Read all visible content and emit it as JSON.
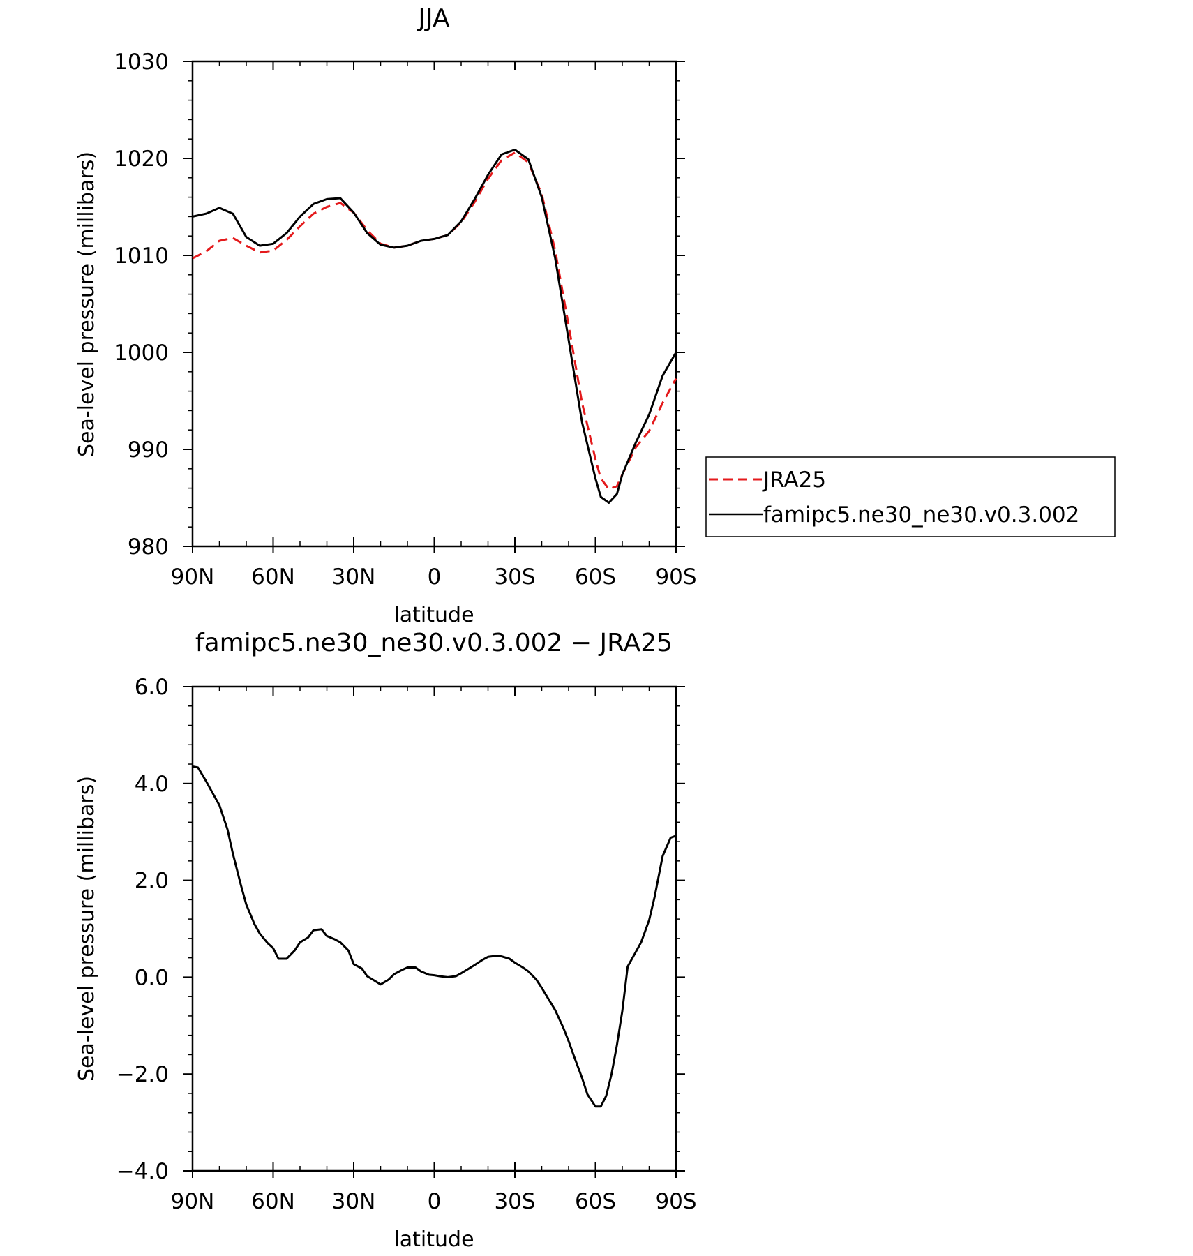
{
  "chart_data": [
    {
      "type": "line",
      "title": "JJA",
      "xlabel": "latitude",
      "ylabel": "Sea-level pressure (millibars)",
      "xlim": [
        90,
        -90
      ],
      "ylim": [
        980,
        1030
      ],
      "x_ticks": [
        90,
        60,
        30,
        0,
        -30,
        -60,
        -90
      ],
      "x_tick_labels": [
        "90N",
        "60N",
        "30N",
        "0",
        "30S",
        "60S",
        "90S"
      ],
      "y_ticks": [
        980,
        990,
        1000,
        1010,
        1020,
        1030
      ],
      "y_tick_labels": [
        "980",
        "990",
        "1000",
        "1010",
        "1020",
        "1030"
      ],
      "grid": false,
      "legend": {
        "position": "right",
        "entries": [
          {
            "label": "JRA25",
            "color": "#e41a1c",
            "style": "dashed"
          },
          {
            "label": "famipc5.ne30_ne30.v0.3.002",
            "color": "#000000",
            "style": "solid"
          }
        ]
      },
      "x": [
        90,
        85,
        80,
        75,
        70,
        65,
        60,
        55,
        50,
        45,
        40,
        35,
        30,
        25,
        20,
        15,
        10,
        5,
        0,
        -5,
        -10,
        -15,
        -20,
        -25,
        -30,
        -35,
        -40,
        -45,
        -50,
        -55,
        -60,
        -62,
        -65,
        -68,
        -70,
        -75,
        -80,
        -85,
        -90
      ],
      "series": [
        {
          "name": "JRA25",
          "color": "#e41a1c",
          "style": "dashed",
          "values": [
            1009.7,
            1010.4,
            1011.5,
            1011.8,
            1011.0,
            1010.3,
            1010.5,
            1011.6,
            1013.0,
            1014.3,
            1015.0,
            1015.4,
            1014.4,
            1012.6,
            1011.2,
            1010.8,
            1011.0,
            1011.5,
            1011.7,
            1012.1,
            1013.4,
            1015.5,
            1017.9,
            1019.8,
            1020.6,
            1019.6,
            1016.3,
            1010.5,
            1002.8,
            994.8,
            989.0,
            987.0,
            985.9,
            986.2,
            987.4,
            990.2,
            991.9,
            994.8,
            997.3
          ]
        },
        {
          "name": "famipc5.ne30_ne30.v0.3.002",
          "color": "#000000",
          "style": "solid",
          "values": [
            1014.0,
            1014.3,
            1014.9,
            1014.3,
            1011.9,
            1011.0,
            1011.2,
            1012.3,
            1014.0,
            1015.3,
            1015.8,
            1015.9,
            1014.4,
            1012.3,
            1011.1,
            1010.8,
            1011.0,
            1011.5,
            1011.7,
            1012.1,
            1013.5,
            1015.8,
            1018.3,
            1020.4,
            1020.9,
            1019.9,
            1016.0,
            1009.7,
            1001.3,
            992.8,
            987.0,
            985.1,
            984.5,
            985.4,
            987.4,
            990.7,
            993.6,
            997.6,
            1000.0
          ]
        }
      ]
    },
    {
      "type": "line",
      "title": "famipc5.ne30_ne30.v0.3.002 − JRA25",
      "xlabel": "latitude",
      "ylabel": "Sea-level pressure (millibars)",
      "xlim": [
        90,
        -90
      ],
      "ylim": [
        -4.0,
        6.0
      ],
      "x_ticks": [
        90,
        60,
        30,
        0,
        -30,
        -60,
        -90
      ],
      "x_tick_labels": [
        "90N",
        "60N",
        "30N",
        "0",
        "30S",
        "60S",
        "90S"
      ],
      "y_ticks": [
        -4.0,
        -2.0,
        0.0,
        2.0,
        4.0,
        6.0
      ],
      "y_tick_labels": [
        "−4.0",
        "−2.0",
        "0.0",
        "2.0",
        "4.0",
        "6.0"
      ],
      "grid": false,
      "x": [
        90,
        88,
        85,
        82,
        80,
        77,
        75,
        72,
        70,
        67,
        65,
        62,
        60,
        58,
        55,
        52,
        50,
        47,
        45,
        42,
        40,
        37,
        35,
        32,
        30,
        27,
        25,
        22,
        20,
        17,
        15,
        12,
        10,
        7,
        5,
        2,
        0,
        -2,
        -5,
        -8,
        -10,
        -15,
        -18,
        -20,
        -23,
        -25,
        -28,
        -30,
        -33,
        -35,
        -38,
        -40,
        -45,
        -48,
        -50,
        -52,
        -55,
        -57,
        -60,
        -62,
        -64,
        -66,
        -68,
        -70,
        -72,
        -75,
        -77,
        -80,
        -82,
        -85,
        -88,
        -90
      ],
      "series": [
        {
          "name": "famipc5.ne30_ne30.v0.3.002 − JRA25",
          "color": "#000000",
          "style": "solid",
          "values": [
            4.35,
            4.33,
            4.05,
            3.75,
            3.55,
            3.05,
            2.55,
            1.9,
            1.5,
            1.1,
            0.9,
            0.7,
            0.6,
            0.38,
            0.38,
            0.55,
            0.72,
            0.82,
            0.97,
            0.99,
            0.85,
            0.78,
            0.72,
            0.55,
            0.27,
            0.18,
            0.02,
            -0.08,
            -0.15,
            -0.05,
            0.06,
            0.15,
            0.2,
            0.2,
            0.12,
            0.05,
            0.04,
            0.02,
            0.0,
            0.02,
            0.08,
            0.25,
            0.36,
            0.42,
            0.44,
            0.43,
            0.38,
            0.3,
            0.2,
            0.12,
            -0.05,
            -0.22,
            -0.68,
            -1.04,
            -1.32,
            -1.63,
            -2.08,
            -2.42,
            -2.67,
            -2.67,
            -2.45,
            -2.0,
            -1.4,
            -0.7,
            0.22,
            0.52,
            0.72,
            1.18,
            1.65,
            2.5,
            2.88,
            2.92
          ]
        }
      ]
    }
  ]
}
